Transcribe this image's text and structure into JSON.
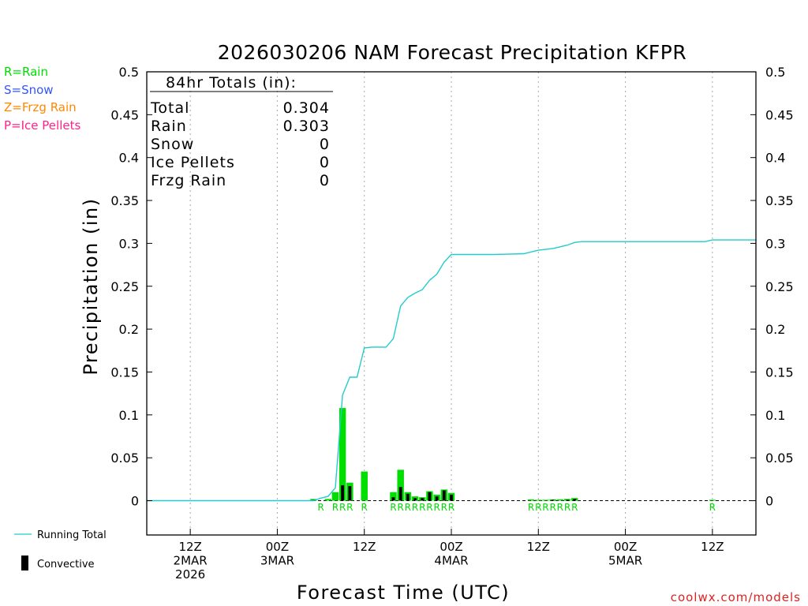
{
  "legend": {
    "rain": "R=Rain",
    "snow": "S=Snow",
    "frzg_rain": "Z=Frzg Rain",
    "ice_pellets": "P=Ice Pellets",
    "running_total": "Running Total",
    "convective": "Convective"
  },
  "totals_box": {
    "header": "84hr Totals (in):",
    "rows": [
      {
        "label": "Total",
        "value": "0.304"
      },
      {
        "label": "Rain",
        "value": "0.303"
      },
      {
        "label": "Snow",
        "value": "0"
      },
      {
        "label": "Ice Pellets",
        "value": "0"
      },
      {
        "label": "Frzg Rain",
        "value": "0"
      }
    ]
  },
  "credit": "coolwx.com/models",
  "colors": {
    "rain": "#00dd00",
    "snow": "#3355ff",
    "frzg_rain": "#ff8800",
    "ice_pellets": "#ff2288",
    "running_total": "#22cccc",
    "convective": "#000000",
    "grid": "#aaaaaa",
    "credit": "#dd2222"
  },
  "chart_data": {
    "type": "bar",
    "title": "2026030206 NAM Forecast Precipitation KFPR",
    "xlabel": "Forecast Time (UTC)",
    "ylabel": "Precipitation (in)",
    "xlim": [
      0,
      84
    ],
    "ylim": [
      -0.04,
      0.5
    ],
    "yticks": [
      "0",
      "0.05",
      "0.1",
      "0.15",
      "0.2",
      "0.25",
      "0.3",
      "0.35",
      "0.4",
      "0.45",
      "0.5"
    ],
    "ytick_values": [
      0,
      0.05,
      0.1,
      0.15,
      0.2,
      0.25,
      0.3,
      0.35,
      0.4,
      0.45,
      0.5
    ],
    "xticks": [
      {
        "hour": 6,
        "line1": "12Z",
        "line2": "2MAR",
        "line3": "2026"
      },
      {
        "hour": 18,
        "line1": "00Z",
        "line2": "3MAR",
        "line3": ""
      },
      {
        "hour": 30,
        "line1": "12Z",
        "line2": "",
        "line3": ""
      },
      {
        "hour": 42,
        "line1": "00Z",
        "line2": "4MAR",
        "line3": ""
      },
      {
        "hour": 54,
        "line1": "12Z",
        "line2": "",
        "line3": ""
      },
      {
        "hour": 66,
        "line1": "00Z",
        "line2": "5MAR",
        "line3": ""
      },
      {
        "hour": 78,
        "line1": "12Z",
        "line2": "",
        "line3": ""
      }
    ],
    "grid_x_hours": [
      6,
      18,
      30,
      42,
      54,
      66,
      78
    ],
    "series": [
      {
        "name": "Rain (hourly)",
        "type": "bar",
        "points": [
          {
            "h": 23,
            "v": 0.002
          },
          {
            "h": 25,
            "v": 0.002
          },
          {
            "h": 26,
            "v": 0.01
          },
          {
            "h": 27,
            "v": 0.108
          },
          {
            "h": 28,
            "v": 0.021
          },
          {
            "h": 30,
            "v": 0.034
          },
          {
            "h": 34,
            "v": 0.01
          },
          {
            "h": 35,
            "v": 0.036
          },
          {
            "h": 36,
            "v": 0.01
          },
          {
            "h": 37,
            "v": 0.005
          },
          {
            "h": 38,
            "v": 0.004
          },
          {
            "h": 39,
            "v": 0.011
          },
          {
            "h": 40,
            "v": 0.007
          },
          {
            "h": 41,
            "v": 0.013
          },
          {
            "h": 42,
            "v": 0.009
          },
          {
            "h": 53,
            "v": 0.0015
          },
          {
            "h": 54,
            "v": 0.001
          },
          {
            "h": 55,
            "v": 0.001
          },
          {
            "h": 56,
            "v": 0.0015
          },
          {
            "h": 57,
            "v": 0.0015
          },
          {
            "h": 58,
            "v": 0.002
          },
          {
            "h": 59,
            "v": 0.003
          },
          {
            "h": 78,
            "v": 0.001
          }
        ]
      },
      {
        "name": "Convective",
        "type": "bar",
        "points": [
          {
            "h": 23,
            "v": 0.001
          },
          {
            "h": 27,
            "v": 0.018
          },
          {
            "h": 28,
            "v": 0.017
          },
          {
            "h": 34,
            "v": 0.004
          },
          {
            "h": 35,
            "v": 0.016
          },
          {
            "h": 36,
            "v": 0.008
          },
          {
            "h": 37,
            "v": 0.003
          },
          {
            "h": 38,
            "v": 0.003
          },
          {
            "h": 39,
            "v": 0.01
          },
          {
            "h": 40,
            "v": 0.005
          },
          {
            "h": 41,
            "v": 0.012
          },
          {
            "h": 42,
            "v": 0.007
          },
          {
            "h": 56,
            "v": 0.001
          },
          {
            "h": 58,
            "v": 0.001
          },
          {
            "h": 59,
            "v": 0.002
          }
        ]
      },
      {
        "name": "Running Total",
        "type": "line",
        "points": [
          {
            "h": 0,
            "v": 0
          },
          {
            "h": 23,
            "v": 0
          },
          {
            "h": 24,
            "v": 0.003
          },
          {
            "h": 25,
            "v": 0.005
          },
          {
            "h": 26,
            "v": 0.015
          },
          {
            "h": 27,
            "v": 0.123
          },
          {
            "h": 28,
            "v": 0.144
          },
          {
            "h": 29,
            "v": 0.144
          },
          {
            "h": 30,
            "v": 0.178
          },
          {
            "h": 31,
            "v": 0.179
          },
          {
            "h": 32,
            "v": 0.179
          },
          {
            "h": 33,
            "v": 0.179
          },
          {
            "h": 34,
            "v": 0.189
          },
          {
            "h": 35,
            "v": 0.227
          },
          {
            "h": 36,
            "v": 0.237
          },
          {
            "h": 37,
            "v": 0.242
          },
          {
            "h": 38,
            "v": 0.246
          },
          {
            "h": 39,
            "v": 0.257
          },
          {
            "h": 40,
            "v": 0.264
          },
          {
            "h": 41,
            "v": 0.278
          },
          {
            "h": 42,
            "v": 0.287
          },
          {
            "h": 48,
            "v": 0.287
          },
          {
            "h": 52,
            "v": 0.288
          },
          {
            "h": 53,
            "v": 0.29
          },
          {
            "h": 54,
            "v": 0.292
          },
          {
            "h": 56,
            "v": 0.294
          },
          {
            "h": 57,
            "v": 0.296
          },
          {
            "h": 58,
            "v": 0.298
          },
          {
            "h": 59,
            "v": 0.301
          },
          {
            "h": 60,
            "v": 0.302
          },
          {
            "h": 77,
            "v": 0.302
          },
          {
            "h": 78,
            "v": 0.304
          },
          {
            "h": 84,
            "v": 0.304
          }
        ]
      }
    ],
    "ptype_labels": [
      {
        "h": 24,
        "text": "R"
      },
      {
        "h": 26,
        "text": "R"
      },
      {
        "h": 27,
        "text": "R"
      },
      {
        "h": 28,
        "text": "R"
      },
      {
        "h": 30,
        "text": "R"
      },
      {
        "h": 34,
        "text": "R"
      },
      {
        "h": 35,
        "text": "R"
      },
      {
        "h": 36,
        "text": "R"
      },
      {
        "h": 37,
        "text": "R"
      },
      {
        "h": 38,
        "text": "R"
      },
      {
        "h": 39,
        "text": "R"
      },
      {
        "h": 40,
        "text": "R"
      },
      {
        "h": 41,
        "text": "R"
      },
      {
        "h": 42,
        "text": "R"
      },
      {
        "h": 53,
        "text": "R"
      },
      {
        "h": 54,
        "text": "R"
      },
      {
        "h": 55,
        "text": "R"
      },
      {
        "h": 56,
        "text": "R"
      },
      {
        "h": 57,
        "text": "R"
      },
      {
        "h": 58,
        "text": "R"
      },
      {
        "h": 59,
        "text": "R"
      },
      {
        "h": 78,
        "text": "R"
      }
    ]
  }
}
